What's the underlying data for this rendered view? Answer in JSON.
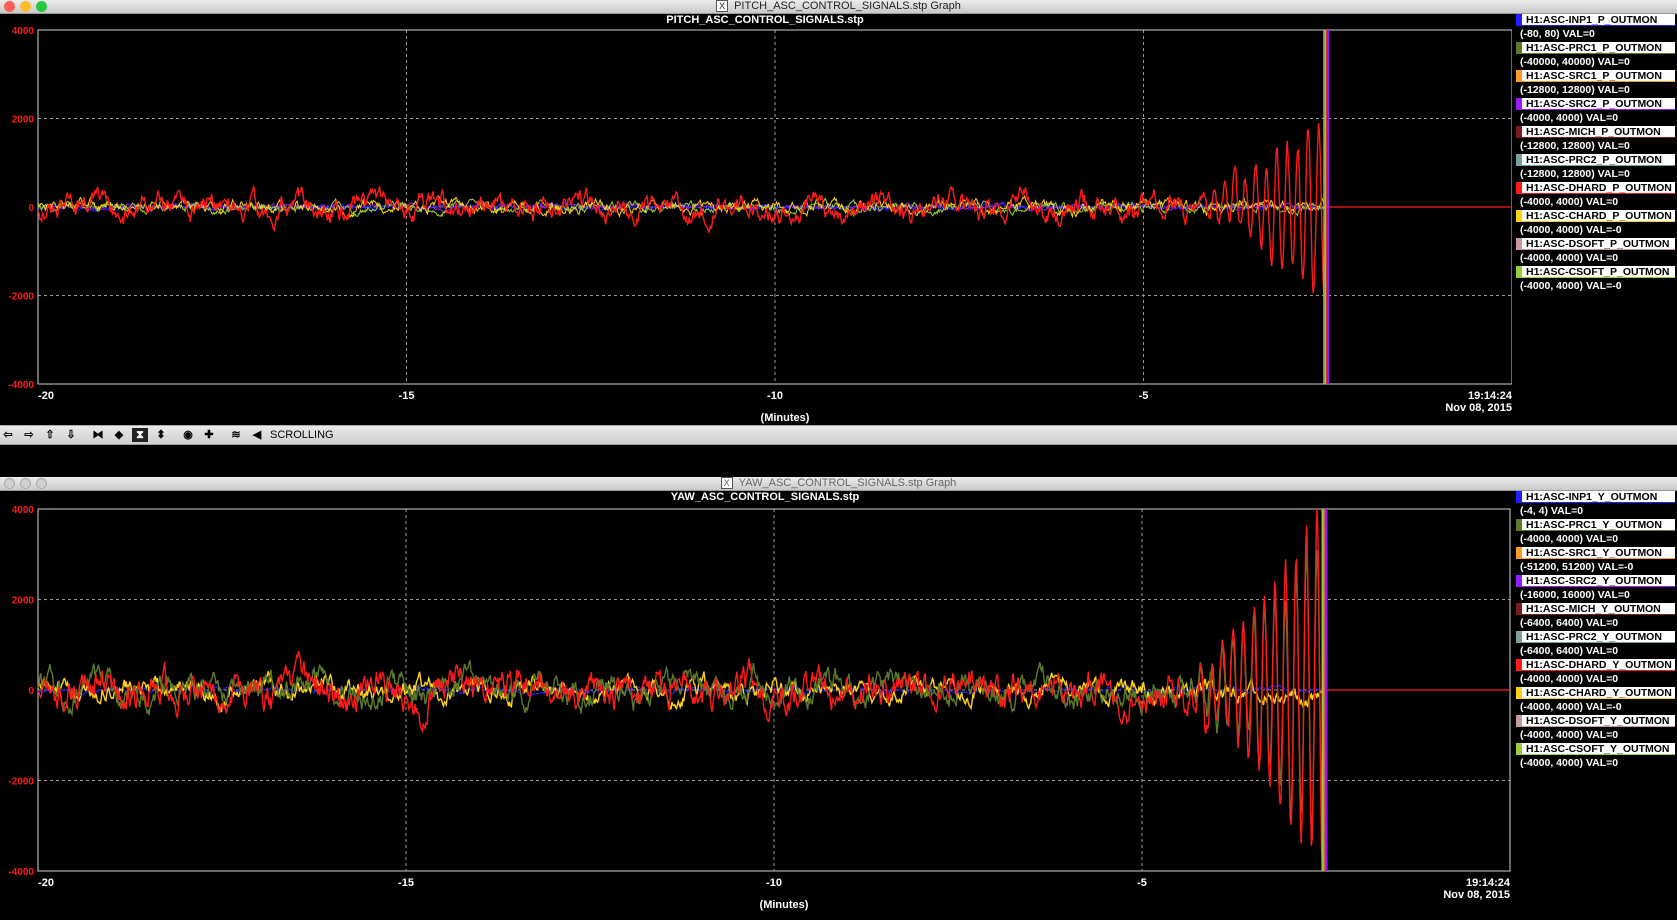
{
  "pitch_window": {
    "title": "PITCH_ASC_CONTROL_SIGNALS.stp Graph",
    "plot_title": "PITCH_ASC_CONTROL_SIGNALS.stp",
    "x_axis_label": "(Minutes)",
    "timestamp_time": "19:14:24",
    "timestamp_date": "Nov 08, 2015",
    "legend": [
      {
        "name": "H1:ASC-INP1_P_OUTMON",
        "range": "(-80, 80) VAL=0",
        "color": "#1f1fff"
      },
      {
        "name": "H1:ASC-PRC1_P_OUTMON",
        "range": "(-40000, 40000) VAL=0",
        "color": "#5a7a2a"
      },
      {
        "name": "H1:ASC-SRC1_P_OUTMON",
        "range": "(-12800, 12800) VAL=0",
        "color": "#ff9a2a"
      },
      {
        "name": "H1:ASC-SRC2_P_OUTMON",
        "range": "(-4000, 4000) VAL=0",
        "color": "#9a1aff"
      },
      {
        "name": "H1:ASC-MICH_P_OUTMON",
        "range": "(-12800, 12800) VAL=0",
        "color": "#7a1a1a"
      },
      {
        "name": "H1:ASC-PRC2_P_OUTMON",
        "range": "(-12800, 12800) VAL=0",
        "color": "#7aa0a0"
      },
      {
        "name": "H1:ASC-DHARD_P_OUTMON",
        "range": "(-4000, 4000) VAL=0",
        "color": "#ff1a1a"
      },
      {
        "name": "H1:ASC-CHARD_P_OUTMON",
        "range": "(-4000, 4000) VAL=-0",
        "color": "#ffd21a"
      },
      {
        "name": "H1:ASC-DSOFT_P_OUTMON",
        "range": "(-4000, 4000) VAL=0",
        "color": "#c89a9a"
      },
      {
        "name": "H1:ASC-CSOFT_P_OUTMON",
        "range": "(-4000, 4000) VAL=-0",
        "color": "#9acd3a"
      }
    ]
  },
  "yaw_window": {
    "title": "YAW_ASC_CONTROL_SIGNALS.stp Graph",
    "plot_title": "YAW_ASC_CONTROL_SIGNALS.stp",
    "x_axis_label": "(Minutes)",
    "timestamp_time": "19:14:24",
    "timestamp_date": "Nov 08, 2015",
    "legend": [
      {
        "name": "H1:ASC-INP1_Y_OUTMON",
        "range": "(-4, 4) VAL=0",
        "color": "#1f1fff"
      },
      {
        "name": "H1:ASC-PRC1_Y_OUTMON",
        "range": "(-4000, 4000) VAL=0",
        "color": "#5a7a2a"
      },
      {
        "name": "H1:ASC-SRC1_Y_OUTMON",
        "range": "(-51200, 51200) VAL=-0",
        "color": "#ff9a2a"
      },
      {
        "name": "H1:ASC-SRC2_Y_OUTMON",
        "range": "(-16000, 16000) VAL=0",
        "color": "#9a1aff"
      },
      {
        "name": "H1:ASC-MICH_Y_OUTMON",
        "range": "(-6400, 6400) VAL=0",
        "color": "#7a1a1a"
      },
      {
        "name": "H1:ASC-PRC2_Y_OUTMON",
        "range": "(-6400, 6400) VAL=0",
        "color": "#7aa0a0"
      },
      {
        "name": "H1:ASC-DHARD_Y_OUTMON",
        "range": "(-4000, 4000) VAL=0",
        "color": "#ff1a1a"
      },
      {
        "name": "H1:ASC-CHARD_Y_OUTMON",
        "range": "(-4000, 4000) VAL=-0",
        "color": "#ffd21a"
      },
      {
        "name": "H1:ASC-DSOFT_Y_OUTMON",
        "range": "(-4000, 4000) VAL=0",
        "color": "#c89a9a"
      },
      {
        "name": "H1:ASC-CSOFT_Y_OUTMON",
        "range": "(-4000, 4000) VAL=0",
        "color": "#9acd3a"
      }
    ]
  },
  "toolbar": {
    "mode_label": "SCROLLING",
    "buttons": [
      {
        "icon": "scroll-left-icon",
        "glyph": "⇦"
      },
      {
        "icon": "scroll-right-icon",
        "glyph": "⇨"
      },
      {
        "icon": "scroll-up-icon",
        "glyph": "⇧"
      },
      {
        "icon": "scroll-down-icon",
        "glyph": "⇩"
      },
      {
        "icon": "zoom-in-x-icon",
        "glyph": "⧓"
      },
      {
        "icon": "zoom-out-x-icon",
        "glyph": "◆"
      },
      {
        "icon": "zoom-in-y-icon",
        "glyph": "⧗"
      },
      {
        "icon": "zoom-out-y-icon",
        "glyph": "⬍"
      },
      {
        "icon": "reset-icon",
        "glyph": "◉"
      },
      {
        "icon": "crosshair-icon",
        "glyph": "✚"
      },
      {
        "icon": "autoscale-icon",
        "glyph": "≋"
      },
      {
        "icon": "back-icon",
        "glyph": "◀"
      }
    ]
  },
  "chart_data": [
    {
      "type": "line",
      "title": "PITCH_ASC_CONTROL_SIGNALS.stp",
      "xlabel": "(Minutes)",
      "ylabel": "",
      "xlim": [
        -20,
        0
      ],
      "ylim": [
        -4000,
        4000
      ],
      "x_ticks": [
        -20,
        -15,
        -10,
        -5
      ],
      "y_ticks": [
        4000,
        2000,
        0,
        -2000,
        -4000
      ],
      "grid": true,
      "signal_end_minute": -2.55,
      "series": [
        {
          "name": "H1:ASC-DHARD_P_OUTMON",
          "color": "#ff1a1a",
          "typical_amplitude": 300,
          "final_oscillation_peak": 2000
        },
        {
          "name": "H1:ASC-CHARD_P_OUTMON",
          "color": "#ffd21a",
          "typical_amplitude": 150
        },
        {
          "name": "H1:ASC-CSOFT_P_OUTMON",
          "color": "#9acd3a",
          "typical_amplitude": 120
        },
        {
          "name": "H1:ASC-INP1_P_OUTMON",
          "color": "#1f1fff",
          "typical_amplitude": 60
        },
        {
          "name": "H1:ASC-SRC2_P_OUTMON",
          "color": "#9a1aff",
          "typical_amplitude": 60
        }
      ]
    },
    {
      "type": "line",
      "title": "YAW_ASC_CONTROL_SIGNALS.stp",
      "xlabel": "(Minutes)",
      "ylabel": "",
      "xlim": [
        -20,
        0
      ],
      "ylim": [
        -4000,
        4000
      ],
      "x_ticks": [
        -20,
        -15,
        -10,
        -5
      ],
      "y_ticks": [
        4000,
        2000,
        0,
        -2000,
        -4000
      ],
      "grid": true,
      "signal_end_minute": -2.55,
      "series": [
        {
          "name": "H1:ASC-DHARD_Y_OUTMON",
          "color": "#ff1a1a",
          "typical_amplitude": 450,
          "final_oscillation_peak": 4000
        },
        {
          "name": "H1:ASC-PRC1_Y_OUTMON",
          "color": "#5a7a2a",
          "typical_amplitude": 350,
          "final_oscillation_peak": 3500
        },
        {
          "name": "H1:ASC-CHARD_Y_OUTMON",
          "color": "#ffd21a",
          "typical_amplitude": 250
        },
        {
          "name": "H1:ASC-INP1_Y_OUTMON",
          "color": "#1f1fff",
          "typical_amplitude": 60
        }
      ]
    }
  ]
}
